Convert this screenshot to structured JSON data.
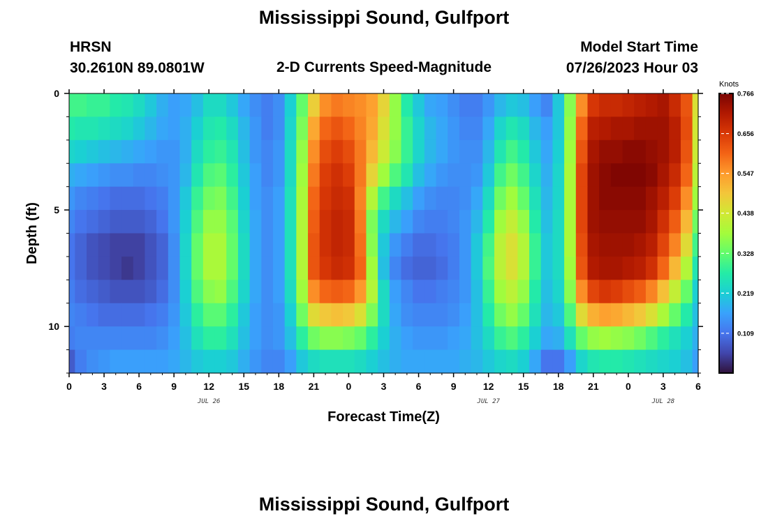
{
  "header": {
    "title": "Mississippi Sound, Gulfport",
    "station_id": "HRSN",
    "coords": "30.2610N  89.0801W",
    "subtitle": "2-D Currents Speed-Magnitude",
    "model_start_label": "Model Start Time",
    "model_start_value": "07/26/2023 Hour 03"
  },
  "footer": {
    "repeated_title": "Mississippi Sound, Gulfport"
  },
  "chart_data": {
    "type": "heatmap",
    "title": "Mississippi Sound, Gulfport",
    "subtitle": "2-D Currents Speed-Magnitude",
    "xlabel": "Forecast Time(Z)",
    "ylabel": "Depth (ft)",
    "x_tick_labels": [
      "0",
      "3",
      "6",
      "9",
      "12",
      "15",
      "18",
      "21",
      "0",
      "3",
      "6",
      "9",
      "12",
      "15",
      "18",
      "21",
      "0",
      "3",
      "6"
    ],
    "date_labels": [
      {
        "text": "JUL 26",
        "hour": 12
      },
      {
        "text": "JUL 27",
        "hour": 36
      },
      {
        "text": "JUL 28",
        "hour": 51
      }
    ],
    "x_range_hours": [
      0,
      54
    ],
    "y_tick_labels": [
      "0",
      "5",
      "10"
    ],
    "y_range_ft": [
      0,
      12
    ],
    "colorbar": {
      "unit": "Knots",
      "ticks": [
        "0.766",
        "0.656",
        "0.547",
        "0.438",
        "0.328",
        "0.219",
        "0.109"
      ],
      "range": [
        0.0,
        0.766
      ],
      "colormap": "turbo",
      "colors": [
        "#30123b",
        "#4146ac",
        "#4675ed",
        "#39a2fc",
        "#1bcfd4",
        "#24eca6",
        "#61fc6c",
        "#a4fc3b",
        "#d1e834",
        "#f3c63a",
        "#fe9b2d",
        "#f36315",
        "#d93806",
        "#b11901",
        "#7a0402"
      ]
    },
    "depth_levels_ft": [
      0.5,
      1.5,
      2.5,
      3.5,
      4.5,
      5.5,
      6.5,
      7.5,
      8.5,
      9.5,
      10.5,
      11.5
    ],
    "forecast_hour_step": 1,
    "values_knots": [
      [
        0.3,
        0.3,
        0.29,
        0.29,
        0.27,
        0.26,
        0.24,
        0.21,
        0.18,
        0.16,
        0.17,
        0.2,
        0.24,
        0.24,
        0.21,
        0.17,
        0.14,
        0.12,
        0.14,
        0.22,
        0.33,
        0.48,
        0.56,
        0.58,
        0.57,
        0.56,
        0.54,
        0.47,
        0.37,
        0.27,
        0.21,
        0.17,
        0.16,
        0.14,
        0.12,
        0.12,
        0.15,
        0.19,
        0.21,
        0.2,
        0.16,
        0.13,
        0.21,
        0.36,
        0.56,
        0.66,
        0.68,
        0.68,
        0.69,
        0.7,
        0.71,
        0.72,
        0.68,
        0.62,
        0.45
      ],
      [
        0.27,
        0.26,
        0.26,
        0.25,
        0.24,
        0.23,
        0.21,
        0.19,
        0.17,
        0.16,
        0.18,
        0.22,
        0.26,
        0.27,
        0.24,
        0.19,
        0.15,
        0.12,
        0.14,
        0.23,
        0.35,
        0.53,
        0.6,
        0.62,
        0.6,
        0.57,
        0.53,
        0.45,
        0.37,
        0.29,
        0.23,
        0.19,
        0.17,
        0.15,
        0.13,
        0.13,
        0.17,
        0.23,
        0.26,
        0.24,
        0.19,
        0.16,
        0.21,
        0.37,
        0.6,
        0.7,
        0.71,
        0.72,
        0.72,
        0.73,
        0.73,
        0.73,
        0.7,
        0.63,
        0.44
      ],
      [
        0.23,
        0.22,
        0.21,
        0.2,
        0.19,
        0.18,
        0.17,
        0.16,
        0.15,
        0.15,
        0.18,
        0.24,
        0.28,
        0.29,
        0.26,
        0.2,
        0.15,
        0.13,
        0.15,
        0.24,
        0.37,
        0.56,
        0.63,
        0.65,
        0.63,
        0.58,
        0.51,
        0.43,
        0.36,
        0.29,
        0.23,
        0.19,
        0.17,
        0.15,
        0.14,
        0.14,
        0.19,
        0.26,
        0.3,
        0.27,
        0.21,
        0.17,
        0.22,
        0.38,
        0.62,
        0.72,
        0.74,
        0.74,
        0.75,
        0.75,
        0.74,
        0.73,
        0.7,
        0.62,
        0.43
      ],
      [
        0.18,
        0.17,
        0.16,
        0.15,
        0.14,
        0.14,
        0.13,
        0.13,
        0.14,
        0.15,
        0.19,
        0.26,
        0.31,
        0.32,
        0.28,
        0.21,
        0.16,
        0.13,
        0.15,
        0.24,
        0.38,
        0.58,
        0.65,
        0.67,
        0.65,
        0.58,
        0.47,
        0.38,
        0.31,
        0.26,
        0.2,
        0.17,
        0.15,
        0.14,
        0.14,
        0.15,
        0.21,
        0.3,
        0.34,
        0.3,
        0.23,
        0.18,
        0.23,
        0.39,
        0.64,
        0.73,
        0.75,
        0.76,
        0.76,
        0.76,
        0.75,
        0.72,
        0.68,
        0.6,
        0.41
      ],
      [
        0.15,
        0.13,
        0.12,
        0.11,
        0.1,
        0.1,
        0.1,
        0.11,
        0.12,
        0.15,
        0.21,
        0.29,
        0.34,
        0.35,
        0.3,
        0.22,
        0.16,
        0.14,
        0.16,
        0.25,
        0.39,
        0.6,
        0.66,
        0.68,
        0.67,
        0.57,
        0.4,
        0.3,
        0.24,
        0.2,
        0.16,
        0.14,
        0.13,
        0.13,
        0.14,
        0.17,
        0.24,
        0.34,
        0.38,
        0.33,
        0.25,
        0.19,
        0.23,
        0.39,
        0.64,
        0.73,
        0.75,
        0.75,
        0.75,
        0.75,
        0.73,
        0.7,
        0.65,
        0.56,
        0.38
      ],
      [
        0.13,
        0.11,
        0.1,
        0.09,
        0.08,
        0.08,
        0.08,
        0.09,
        0.11,
        0.15,
        0.22,
        0.31,
        0.37,
        0.37,
        0.32,
        0.23,
        0.17,
        0.14,
        0.16,
        0.25,
        0.4,
        0.61,
        0.67,
        0.69,
        0.68,
        0.58,
        0.35,
        0.24,
        0.19,
        0.16,
        0.13,
        0.12,
        0.12,
        0.13,
        0.15,
        0.19,
        0.27,
        0.38,
        0.42,
        0.37,
        0.27,
        0.2,
        0.24,
        0.39,
        0.64,
        0.73,
        0.74,
        0.74,
        0.74,
        0.74,
        0.72,
        0.67,
        0.61,
        0.51,
        0.34
      ],
      [
        0.11,
        0.09,
        0.07,
        0.06,
        0.05,
        0.05,
        0.05,
        0.07,
        0.09,
        0.14,
        0.23,
        0.33,
        0.39,
        0.39,
        0.33,
        0.24,
        0.17,
        0.14,
        0.16,
        0.25,
        0.4,
        0.62,
        0.67,
        0.69,
        0.68,
        0.59,
        0.36,
        0.21,
        0.15,
        0.12,
        0.1,
        0.1,
        0.11,
        0.12,
        0.15,
        0.21,
        0.3,
        0.41,
        0.45,
        0.4,
        0.29,
        0.21,
        0.24,
        0.39,
        0.63,
        0.72,
        0.73,
        0.73,
        0.73,
        0.72,
        0.7,
        0.64,
        0.57,
        0.46,
        0.3
      ],
      [
        0.11,
        0.09,
        0.07,
        0.06,
        0.05,
        0.04,
        0.05,
        0.07,
        0.09,
        0.14,
        0.23,
        0.33,
        0.39,
        0.39,
        0.33,
        0.24,
        0.17,
        0.14,
        0.16,
        0.25,
        0.4,
        0.62,
        0.66,
        0.68,
        0.67,
        0.6,
        0.38,
        0.2,
        0.13,
        0.1,
        0.09,
        0.09,
        0.1,
        0.12,
        0.15,
        0.21,
        0.31,
        0.41,
        0.45,
        0.4,
        0.29,
        0.21,
        0.24,
        0.38,
        0.62,
        0.71,
        0.72,
        0.72,
        0.71,
        0.7,
        0.67,
        0.6,
        0.51,
        0.4,
        0.26
      ],
      [
        0.12,
        0.1,
        0.09,
        0.08,
        0.07,
        0.07,
        0.07,
        0.08,
        0.1,
        0.14,
        0.22,
        0.31,
        0.36,
        0.37,
        0.31,
        0.23,
        0.17,
        0.14,
        0.16,
        0.24,
        0.38,
        0.56,
        0.6,
        0.61,
        0.6,
        0.55,
        0.4,
        0.24,
        0.16,
        0.13,
        0.11,
        0.11,
        0.12,
        0.13,
        0.15,
        0.2,
        0.29,
        0.38,
        0.41,
        0.37,
        0.27,
        0.2,
        0.23,
        0.36,
        0.56,
        0.64,
        0.66,
        0.65,
        0.63,
        0.61,
        0.57,
        0.5,
        0.42,
        0.33,
        0.22
      ],
      [
        0.13,
        0.12,
        0.11,
        0.1,
        0.1,
        0.1,
        0.1,
        0.11,
        0.12,
        0.15,
        0.21,
        0.28,
        0.32,
        0.32,
        0.28,
        0.21,
        0.16,
        0.14,
        0.15,
        0.22,
        0.34,
        0.46,
        0.49,
        0.5,
        0.49,
        0.45,
        0.35,
        0.24,
        0.17,
        0.14,
        0.13,
        0.13,
        0.13,
        0.14,
        0.16,
        0.2,
        0.27,
        0.34,
        0.37,
        0.33,
        0.25,
        0.19,
        0.21,
        0.31,
        0.46,
        0.52,
        0.54,
        0.53,
        0.51,
        0.49,
        0.45,
        0.39,
        0.33,
        0.27,
        0.2
      ],
      [
        0.12,
        0.13,
        0.13,
        0.13,
        0.13,
        0.13,
        0.13,
        0.13,
        0.14,
        0.16,
        0.2,
        0.25,
        0.28,
        0.28,
        0.25,
        0.2,
        0.16,
        0.14,
        0.15,
        0.2,
        0.28,
        0.34,
        0.36,
        0.36,
        0.35,
        0.33,
        0.28,
        0.22,
        0.18,
        0.16,
        0.15,
        0.15,
        0.15,
        0.16,
        0.17,
        0.2,
        0.24,
        0.29,
        0.31,
        0.28,
        0.22,
        0.17,
        0.18,
        0.25,
        0.33,
        0.37,
        0.38,
        0.37,
        0.36,
        0.34,
        0.31,
        0.28,
        0.25,
        0.22,
        0.18
      ],
      [
        0.08,
        0.12,
        0.14,
        0.15,
        0.16,
        0.16,
        0.16,
        0.16,
        0.16,
        0.17,
        0.19,
        0.21,
        0.22,
        0.22,
        0.21,
        0.18,
        0.15,
        0.13,
        0.13,
        0.16,
        0.21,
        0.24,
        0.25,
        0.25,
        0.25,
        0.24,
        0.22,
        0.2,
        0.18,
        0.17,
        0.17,
        0.17,
        0.17,
        0.17,
        0.18,
        0.19,
        0.21,
        0.23,
        0.24,
        0.22,
        0.17,
        0.11,
        0.11,
        0.16,
        0.23,
        0.26,
        0.27,
        0.27,
        0.26,
        0.25,
        0.24,
        0.23,
        0.22,
        0.2,
        0.16
      ]
    ]
  }
}
